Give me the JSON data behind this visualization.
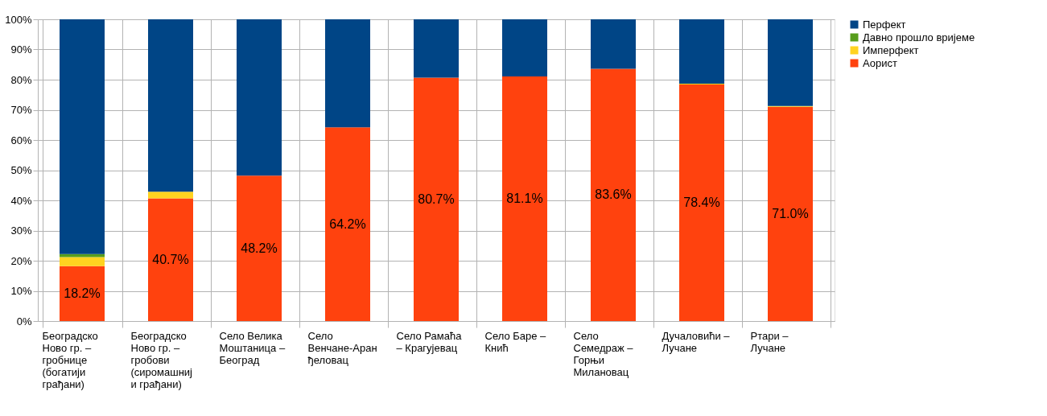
{
  "chart_data": {
    "type": "bar",
    "stacked": true,
    "categories": [
      "Београдско Ново гр. – гробнице (богатији грађани)",
      "Београдско Ново гр. – гробови (сиромашниј и грађани)",
      "Село Велика Моштаница – Београд",
      "Село Венчане-Аранђеловац",
      "Село Рамаћа – Крагујевац",
      "Село Баре – Кнић",
      "Село Семедраж – Горњи Милановац",
      "Дучаловићи – Лучане",
      "Ртари – Лучане"
    ],
    "series": [
      {
        "name": "Аорист",
        "color": "#ff420e",
        "values": [
          18.2,
          40.7,
          48.2,
          64.2,
          80.7,
          81.1,
          83.6,
          78.4,
          71.0
        ],
        "value_labels": [
          "18.2%",
          "40.7%",
          "48.2%",
          "64.2%",
          "80.7%",
          "81.1%",
          "83.6%",
          "78.4%",
          "71.0%"
        ]
      },
      {
        "name": "Имперфект",
        "color": "#ffd320",
        "values": [
          3.0,
          2.2,
          0,
          0,
          0,
          0,
          0,
          0.3,
          0.3
        ]
      },
      {
        "name": "Давно прошло вријеме",
        "color": "#579d1c",
        "values": [
          1.0,
          0,
          0,
          0,
          0,
          0,
          0,
          0,
          0
        ]
      },
      {
        "name": "Перфект",
        "color": "#004586",
        "values": [
          77.8,
          57.1,
          51.8,
          35.8,
          19.3,
          18.9,
          16.4,
          21.3,
          28.7
        ]
      }
    ],
    "ylim": [
      0,
      100
    ],
    "yticks": [
      {
        "value": 0,
        "label": "0%"
      },
      {
        "value": 10,
        "label": "10%"
      },
      {
        "value": 20,
        "label": "20%"
      },
      {
        "value": 30,
        "label": "30%"
      },
      {
        "value": 40,
        "label": "40%"
      },
      {
        "value": 50,
        "label": "50%"
      },
      {
        "value": 60,
        "label": "60%"
      },
      {
        "value": 70,
        "label": "70%"
      },
      {
        "value": 80,
        "label": "80%"
      },
      {
        "value": 90,
        "label": "90%"
      },
      {
        "value": 100,
        "label": "100%"
      }
    ],
    "grid": true,
    "legend": "right"
  }
}
